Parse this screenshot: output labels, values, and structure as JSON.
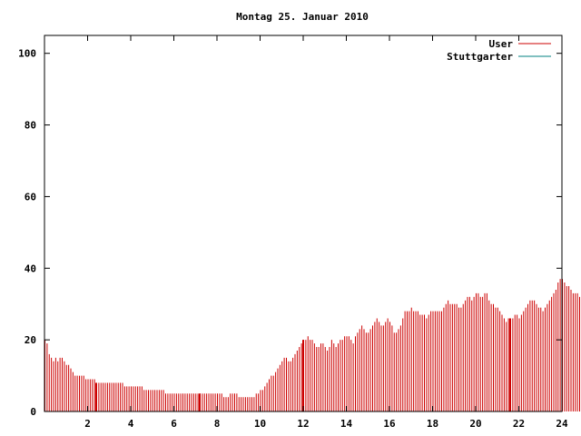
{
  "chart_data": {
    "type": "bar",
    "title": "Montag 25. Januar 2010",
    "xlabel": "",
    "ylabel": "",
    "xlim": [
      0,
      24
    ],
    "ylim": [
      0,
      105
    ],
    "x_ticks": [
      2,
      4,
      6,
      8,
      10,
      12,
      14,
      16,
      18,
      20,
      22,
      24
    ],
    "y_ticks": [
      0,
      20,
      40,
      60,
      80,
      100
    ],
    "grid": false,
    "legend_position": "top-right",
    "bin_hours": 0.1,
    "series": [
      {
        "name": "User",
        "color": "#cc0000",
        "values": [
          20,
          19,
          16,
          15,
          14,
          15,
          14,
          15,
          15,
          14,
          13,
          13,
          12,
          11,
          10,
          10,
          10,
          10,
          10,
          9,
          9,
          9,
          9,
          9,
          8,
          8,
          8,
          8,
          8,
          8,
          8,
          8,
          8,
          8,
          8,
          8,
          8,
          7,
          7,
          7,
          7,
          7,
          7,
          7,
          7,
          7,
          6,
          6,
          6,
          6,
          6,
          6,
          6,
          6,
          6,
          6,
          5,
          5,
          5,
          5,
          5,
          5,
          5,
          5,
          5,
          5,
          5,
          5,
          5,
          5,
          5,
          5,
          5,
          5,
          5,
          5,
          5,
          5,
          5,
          5,
          5,
          5,
          5,
          4,
          4,
          4,
          5,
          5,
          5,
          5,
          4,
          4,
          4,
          4,
          4,
          4,
          4,
          4,
          5,
          5,
          6,
          6,
          7,
          8,
          9,
          10,
          10,
          11,
          12,
          13,
          14,
          15,
          15,
          14,
          14,
          15,
          16,
          17,
          18,
          19,
          20,
          20,
          21,
          20,
          20,
          19,
          18,
          18,
          19,
          19,
          18,
          17,
          18,
          20,
          19,
          18,
          19,
          20,
          20,
          21,
          21,
          21,
          20,
          19,
          21,
          22,
          23,
          24,
          23,
          22,
          22,
          23,
          24,
          25,
          26,
          25,
          24,
          24,
          25,
          26,
          25,
          24,
          22,
          22,
          23,
          24,
          26,
          28,
          28,
          28,
          29,
          28,
          28,
          28,
          27,
          27,
          27,
          26,
          27,
          28,
          28,
          28,
          28,
          28,
          28,
          29,
          30,
          31,
          30,
          30,
          30,
          30,
          29,
          29,
          30,
          31,
          32,
          32,
          31,
          32,
          33,
          33,
          32,
          32,
          33,
          33,
          31,
          30,
          30,
          29,
          29,
          28,
          27,
          26,
          25,
          26,
          26,
          26,
          27,
          27,
          26,
          27,
          28,
          29,
          30,
          31,
          31,
          31,
          30,
          29,
          29,
          28,
          29,
          30,
          31,
          32,
          33,
          34,
          36,
          37,
          37,
          36,
          35,
          35,
          34,
          33,
          33,
          33,
          32,
          32,
          31,
          30,
          30,
          30,
          31,
          30,
          30,
          29,
          28,
          28,
          29,
          29,
          28,
          29,
          29,
          30,
          30
        ]
      },
      {
        "name": "Stuttgarter",
        "color": "#008080",
        "values": []
      }
    ],
    "highlight_x": [
      2.4,
      7.2,
      12.0,
      21.6
    ]
  }
}
